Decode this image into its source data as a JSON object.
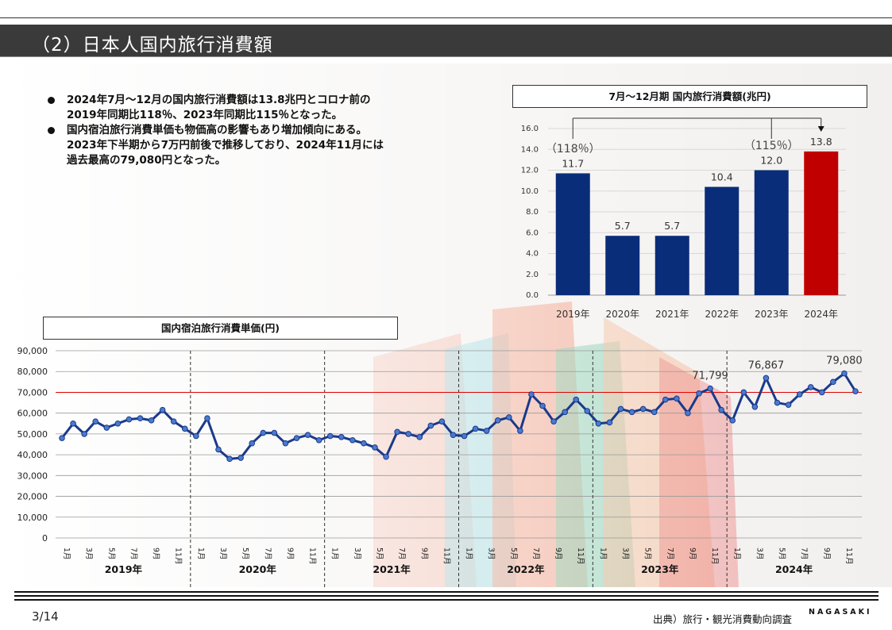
{
  "header": {
    "title": "（2）日本人国内旅行消費額"
  },
  "bullets": [
    {
      "line1": "2024年7月～12月の国内旅行消費額は13.8兆円とコロナ前の",
      "line2": "2019年同期比118％、2023年同期比115％となった。"
    },
    {
      "line1": "国内宿泊旅行消費単価も物価高の影響もあり増加傾向にある。",
      "line2": "2023年下半期から7万円前後で推移しており、2024年11月には",
      "line3": "過去最高の79,080円となった。"
    }
  ],
  "chart_data": [
    {
      "type": "bar",
      "title": "7月～12月期  国内旅行消費額(兆円)",
      "categories": [
        "2019年",
        "2020年",
        "2021年",
        "2022年",
        "2023年",
        "2024年"
      ],
      "values": [
        11.7,
        5.7,
        5.7,
        10.4,
        12.0,
        13.8
      ],
      "value_labels": [
        "11.7",
        "5.7",
        "5.7",
        "10.4",
        "12.0",
        "13.8"
      ],
      "ylim": [
        0,
        16
      ],
      "yticks": [
        "0.0",
        "2.0",
        "4.0",
        "6.0",
        "8.0",
        "10.0",
        "12.0",
        "14.0",
        "16.0"
      ],
      "colors": [
        "#0a2d7a",
        "#0a2d7a",
        "#0a2d7a",
        "#0a2d7a",
        "#0a2d7a",
        "#c00000"
      ],
      "annotations": [
        {
          "label": "（118％）",
          "from": "2019年",
          "to": "2024年"
        },
        {
          "label": "（115％）",
          "from": "2023年",
          "to": "2024年"
        }
      ]
    },
    {
      "type": "line",
      "title": "国内宿泊旅行消費単価(円)",
      "years": [
        "2019年",
        "2020年",
        "2021年",
        "2022年",
        "2023年",
        "2024年"
      ],
      "month_labels": [
        "1月",
        "3月",
        "5月",
        "7月",
        "9月",
        "11月"
      ],
      "values": [
        48000,
        55000,
        50000,
        56000,
        53000,
        55000,
        57000,
        57500,
        56500,
        61500,
        56000,
        52500,
        49000,
        57500,
        42500,
        38000,
        38500,
        45500,
        50500,
        50500,
        45500,
        48000,
        49500,
        47000,
        49000,
        48500,
        47000,
        45500,
        43500,
        39000,
        51000,
        50000,
        48500,
        54000,
        56000,
        49500,
        49000,
        52500,
        51500,
        56500,
        58000,
        51500,
        69000,
        63500,
        56000,
        60500,
        66500,
        61000,
        55000,
        55500,
        62000,
        60500,
        62000,
        60500,
        66500,
        67000,
        60000,
        69500,
        71799,
        61500,
        56500,
        70000,
        63000,
        76867,
        65000,
        64000,
        69000,
        72500,
        70000,
        75000,
        79080,
        70500
      ],
      "point_labels": [
        {
          "index": 58,
          "label": "71,799"
        },
        {
          "index": 63,
          "label": "76,867"
        },
        {
          "index": 70,
          "label": "79,080"
        }
      ],
      "ylim": [
        0,
        90000
      ],
      "yticks": [
        "0",
        "10,000",
        "20,000",
        "30,000",
        "40,000",
        "50,000",
        "60,000",
        "70,000",
        "80,000",
        "90,000"
      ],
      "reference_line": 70000,
      "line_color": "#1a3a8a",
      "reference_color": "#e00000"
    }
  ],
  "footer": {
    "page": "3/14",
    "source": "出典）旅行・観光消費動向調査",
    "logo": "NAGASAKI"
  }
}
